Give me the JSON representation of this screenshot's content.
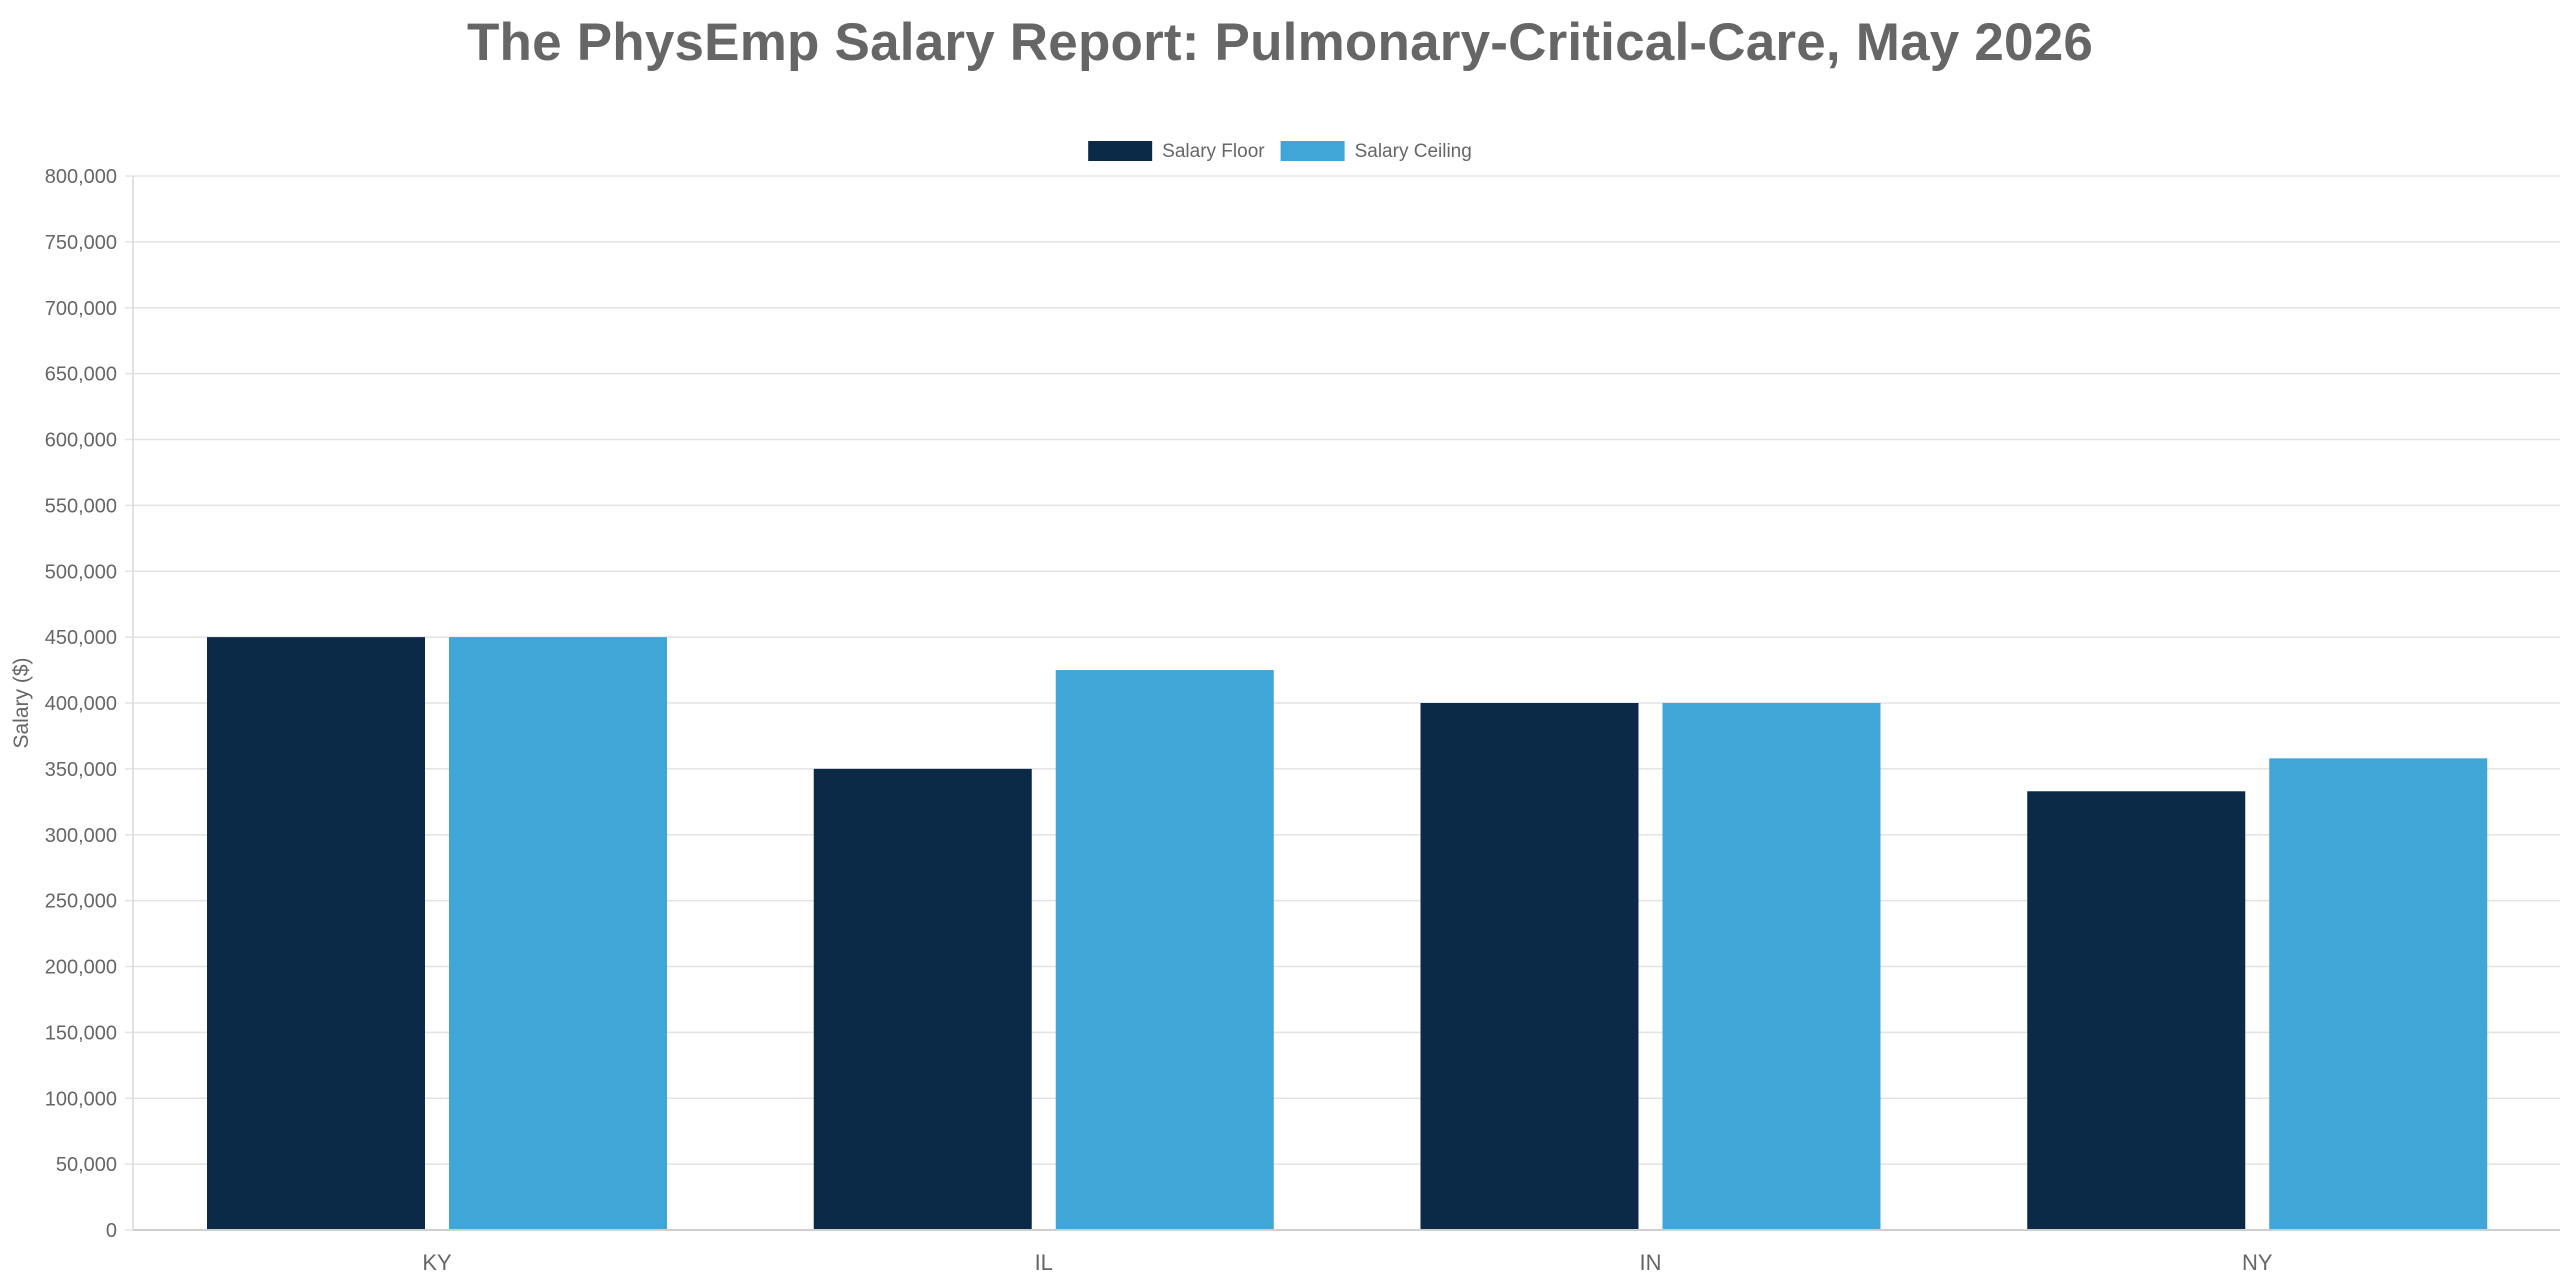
{
  "chart_data": {
    "type": "bar",
    "title": "The PhysEmp Salary Report: Pulmonary-Critical-Care, May 2026",
    "xlabel": "",
    "ylabel": "Salary ($)",
    "categories": [
      "KY",
      "IL",
      "IN",
      "NY"
    ],
    "series": [
      {
        "name": "Salary Floor",
        "color": "#0b2a48",
        "values": [
          450000,
          350000,
          400000,
          333000
        ]
      },
      {
        "name": "Salary Ceiling",
        "color": "#3fa6d7",
        "values": [
          450000,
          425000,
          400000,
          358000
        ]
      }
    ],
    "ylim": [
      0,
      800000
    ],
    "ytick_step": 50000,
    "yticks": [
      "0",
      "50,000",
      "100,000",
      "150,000",
      "200,000",
      "250,000",
      "300,000",
      "350,000",
      "400,000",
      "450,000",
      "500,000",
      "550,000",
      "600,000",
      "650,000",
      "700,000",
      "750,000",
      "800,000"
    ],
    "grid": true,
    "legend_position": "top-center"
  }
}
